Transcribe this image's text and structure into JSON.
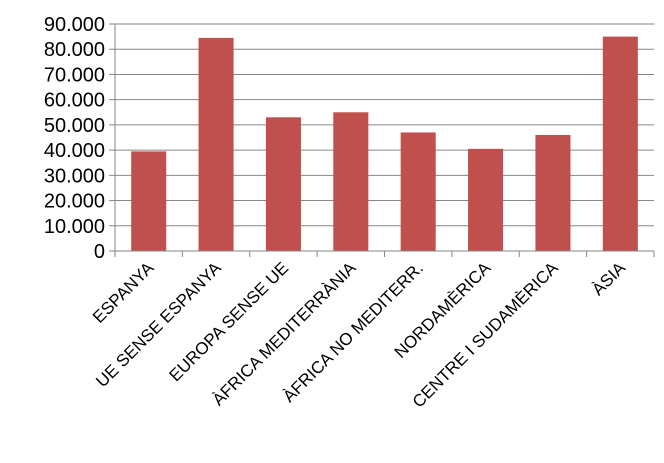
{
  "chart_data": {
    "type": "bar",
    "title": "",
    "xlabel": "",
    "ylabel": "",
    "categories": [
      "ESPANYA",
      "UE SENSE ESPANYA",
      "EUROPA SENSE UE",
      "ÀFRICA MEDITERRÀNIA",
      "ÀFRICA NO MEDITERR.",
      "NORDAMÈRICA",
      "CENTRE I SUDAMÈRICA",
      "ÀSIA"
    ],
    "values": [
      39500,
      84500,
      53000,
      55000,
      47000,
      40500,
      46000,
      85000
    ],
    "ylim": [
      0,
      90000
    ],
    "yticks": [
      0,
      10000,
      20000,
      30000,
      40000,
      50000,
      60000,
      70000,
      80000,
      90000
    ],
    "ytick_labels": [
      "0",
      "10.000",
      "20.000",
      "30.000",
      "40.000",
      "50.000",
      "60.000",
      "70.000",
      "80.000",
      "90.000"
    ],
    "grid": true,
    "legend": "none",
    "bar_color": "#c0504d",
    "grid_color": "#868686"
  }
}
